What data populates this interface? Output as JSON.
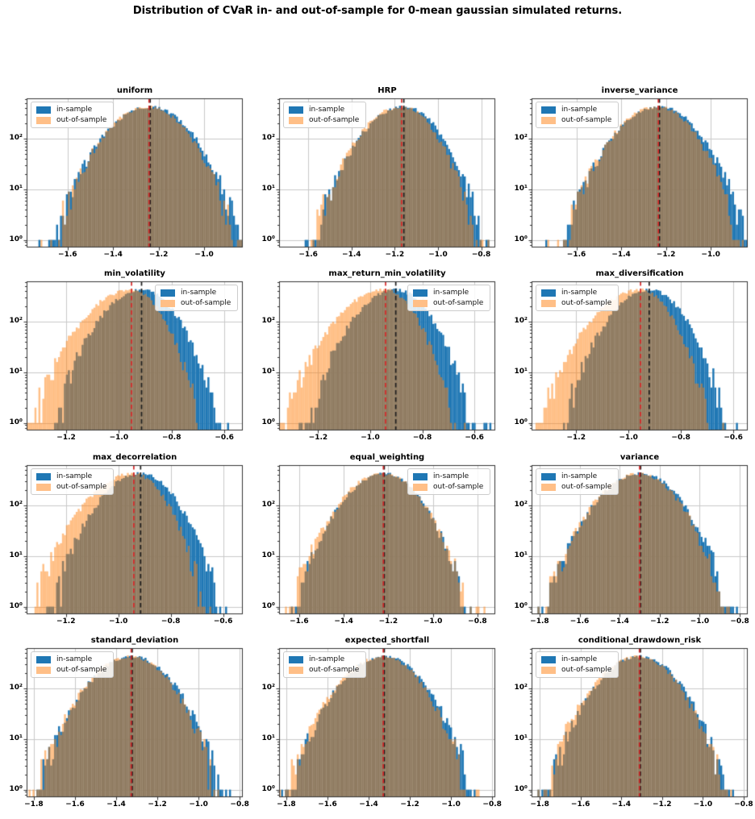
{
  "suptitle": "Distribution of CVaR in- and out-of-sample for 0-mean gaussian simulated returns.",
  "legend": {
    "in_sample": "in-sample",
    "out_of_sample": "out-of-sample"
  },
  "colors": {
    "in_sample": "#1f77b4",
    "out_of_sample_base": "#ff7f0e",
    "out_of_sample_light": "#ffbf87",
    "overlap": "#8f7b5a",
    "red_vline": "#d62728",
    "black_vline": "#1c1c1c",
    "grid": "#c9c9c9",
    "axis": "#333333"
  },
  "y_axis": {
    "scale": "log",
    "tick_labels": [
      "10⁰",
      "10¹",
      "10²"
    ],
    "tick_exponents": [
      0,
      1,
      2
    ],
    "min_exponent": -0.15,
    "max_exponent": 2.8
  },
  "chart_data": [
    {
      "type": "bar",
      "title": "uniform",
      "legend_position": "upper-left",
      "xlim": [
        -1.78,
        -0.83
      ],
      "xticks": [
        -1.6,
        -1.4,
        -1.2,
        -1.0
      ],
      "vline_red": -1.242,
      "vline_black": -1.237,
      "bins": 110,
      "seed": 1,
      "series": [
        {
          "name": "in-sample",
          "mean": -1.238,
          "sigma_left": 0.125,
          "sigma_right": 0.118,
          "peak_count": 430
        },
        {
          "name": "out-of-sample",
          "mean": -1.246,
          "sigma_left": 0.12,
          "sigma_right": 0.112,
          "peak_count": 430
        }
      ]
    },
    {
      "type": "bar",
      "title": "HRP",
      "legend_position": "upper-left",
      "xlim": [
        -1.735,
        -0.735
      ],
      "xticks": [
        -1.6,
        -1.4,
        -1.2,
        -1.0,
        -0.8
      ],
      "vline_red": -1.168,
      "vline_black": -1.158,
      "bins": 110,
      "seed": 2,
      "series": [
        {
          "name": "in-sample",
          "mean": -1.158,
          "sigma_left": 0.122,
          "sigma_right": 0.108,
          "peak_count": 430
        },
        {
          "name": "out-of-sample",
          "mean": -1.17,
          "sigma_left": 0.12,
          "sigma_right": 0.102,
          "peak_count": 430
        }
      ]
    },
    {
      "type": "bar",
      "title": "inverse_variance",
      "legend_position": "upper-left",
      "xlim": [
        -1.8,
        -0.835
      ],
      "xticks": [
        -1.6,
        -1.4,
        -1.2,
        -1.0
      ],
      "vline_red": -1.234,
      "vline_black": -1.229,
      "bins": 110,
      "seed": 3,
      "series": [
        {
          "name": "in-sample",
          "mean": -1.229,
          "sigma_left": 0.125,
          "sigma_right": 0.115,
          "peak_count": 430
        },
        {
          "name": "out-of-sample",
          "mean": -1.238,
          "sigma_left": 0.122,
          "sigma_right": 0.108,
          "peak_count": 430
        }
      ]
    },
    {
      "type": "bar",
      "title": "min_volatility",
      "legend_position": "upper-right",
      "xlim": [
        -1.35,
        -0.53
      ],
      "xticks": [
        -1.2,
        -1.0,
        -0.8,
        -0.6
      ],
      "vline_red": -0.952,
      "vline_black": -0.914,
      "bins": 110,
      "seed": 4,
      "series": [
        {
          "name": "in-sample",
          "mean": -0.914,
          "sigma_left": 0.098,
          "sigma_right": 0.086,
          "peak_count": 430
        },
        {
          "name": "out-of-sample",
          "mean": -0.952,
          "sigma_left": 0.112,
          "sigma_right": 0.075,
          "peak_count": 430
        }
      ]
    },
    {
      "type": "bar",
      "title": "max_return_min_volatility",
      "legend_position": "upper-right",
      "xlim": [
        -1.35,
        -0.52
      ],
      "xticks": [
        -1.2,
        -1.0,
        -0.8,
        -0.6
      ],
      "vline_red": -0.941,
      "vline_black": -0.902,
      "bins": 110,
      "seed": 5,
      "series": [
        {
          "name": "in-sample",
          "mean": -0.902,
          "sigma_left": 0.1,
          "sigma_right": 0.086,
          "peak_count": 430
        },
        {
          "name": "out-of-sample",
          "mean": -0.943,
          "sigma_left": 0.114,
          "sigma_right": 0.076,
          "peak_count": 430
        }
      ]
    },
    {
      "type": "bar",
      "title": "max_diversification",
      "legend_position": "upper-left",
      "xlim": [
        -1.37,
        -0.545
      ],
      "xticks": [
        -1.2,
        -1.0,
        -0.8,
        -0.6
      ],
      "vline_red": -0.954,
      "vline_black": -0.921,
      "bins": 110,
      "seed": 6,
      "series": [
        {
          "name": "in-sample",
          "mean": -0.921,
          "sigma_left": 0.096,
          "sigma_right": 0.086,
          "peak_count": 430
        },
        {
          "name": "out-of-sample",
          "mean": -0.955,
          "sigma_left": 0.112,
          "sigma_right": 0.076,
          "peak_count": 430
        }
      ]
    },
    {
      "type": "bar",
      "title": "max_decorrelation",
      "legend_position": "upper-left",
      "xlim": [
        -1.35,
        -0.525
      ],
      "xticks": [
        -1.2,
        -1.0,
        -0.8,
        -0.6
      ],
      "vline_red": -0.941,
      "vline_black": -0.915,
      "bins": 110,
      "seed": 7,
      "series": [
        {
          "name": "in-sample",
          "mean": -0.915,
          "sigma_left": 0.1,
          "sigma_right": 0.088,
          "peak_count": 430
        },
        {
          "name": "out-of-sample",
          "mean": -0.944,
          "sigma_left": 0.112,
          "sigma_right": 0.08,
          "peak_count": 430
        }
      ]
    },
    {
      "type": "bar",
      "title": "equal_weighting",
      "legend_position": "upper-right",
      "xlim": [
        -1.69,
        -0.72
      ],
      "xticks": [
        -1.6,
        -1.4,
        -1.2,
        -1.0,
        -0.8
      ],
      "vline_red": -1.222,
      "vline_black": -1.218,
      "bins": 110,
      "seed": 8,
      "series": [
        {
          "name": "in-sample",
          "mean": -1.218,
          "sigma_left": 0.116,
          "sigma_right": 0.106,
          "peak_count": 430
        },
        {
          "name": "out-of-sample",
          "mean": -1.224,
          "sigma_left": 0.12,
          "sigma_right": 0.11,
          "peak_count": 430
        }
      ]
    },
    {
      "type": "bar",
      "title": "variance",
      "legend_position": "upper-left",
      "xlim": [
        -1.84,
        -0.76
      ],
      "xticks": [
        -1.8,
        -1.6,
        -1.4,
        -1.2,
        -1.0,
        -0.8
      ],
      "vline_red": -1.3,
      "vline_black": -1.295,
      "bins": 110,
      "seed": 9,
      "series": [
        {
          "name": "in-sample",
          "mean": -1.295,
          "sigma_left": 0.138,
          "sigma_right": 0.13,
          "peak_count": 430
        },
        {
          "name": "out-of-sample",
          "mean": -1.302,
          "sigma_left": 0.138,
          "sigma_right": 0.124,
          "peak_count": 430
        }
      ]
    },
    {
      "type": "bar",
      "title": "standard_deviation",
      "legend_position": "upper-left",
      "xlim": [
        -1.835,
        -0.785
      ],
      "xticks": [
        -1.8,
        -1.6,
        -1.4,
        -1.2,
        -1.0,
        -0.8
      ],
      "vline_red": -1.327,
      "vline_black": -1.322,
      "bins": 110,
      "seed": 10,
      "series": [
        {
          "name": "in-sample",
          "mean": -1.322,
          "sigma_left": 0.134,
          "sigma_right": 0.128,
          "peak_count": 430
        },
        {
          "name": "out-of-sample",
          "mean": -1.328,
          "sigma_left": 0.135,
          "sigma_right": 0.123,
          "peak_count": 430
        }
      ]
    },
    {
      "type": "bar",
      "title": "expected_shortfall",
      "legend_position": "upper-left",
      "xlim": [
        -1.835,
        -0.785
      ],
      "xticks": [
        -1.8,
        -1.6,
        -1.4,
        -1.2,
        -1.0,
        -0.8
      ],
      "vline_red": -1.329,
      "vline_black": -1.324,
      "bins": 110,
      "seed": 11,
      "series": [
        {
          "name": "in-sample",
          "mean": -1.324,
          "sigma_left": 0.135,
          "sigma_right": 0.125,
          "peak_count": 430
        },
        {
          "name": "out-of-sample",
          "mean": -1.331,
          "sigma_left": 0.137,
          "sigma_right": 0.12,
          "peak_count": 430
        }
      ]
    },
    {
      "type": "bar",
      "title": "conditional_drawdown_risk",
      "legend_position": "upper-left",
      "xlim": [
        -1.84,
        -0.78
      ],
      "xticks": [
        -1.8,
        -1.6,
        -1.4,
        -1.2,
        -1.0,
        -0.8
      ],
      "vline_red": -1.311,
      "vline_black": -1.306,
      "bins": 110,
      "seed": 12,
      "series": [
        {
          "name": "in-sample",
          "mean": -1.306,
          "sigma_left": 0.134,
          "sigma_right": 0.125,
          "peak_count": 430
        },
        {
          "name": "out-of-sample",
          "mean": -1.313,
          "sigma_left": 0.137,
          "sigma_right": 0.12,
          "peak_count": 430
        }
      ]
    }
  ]
}
